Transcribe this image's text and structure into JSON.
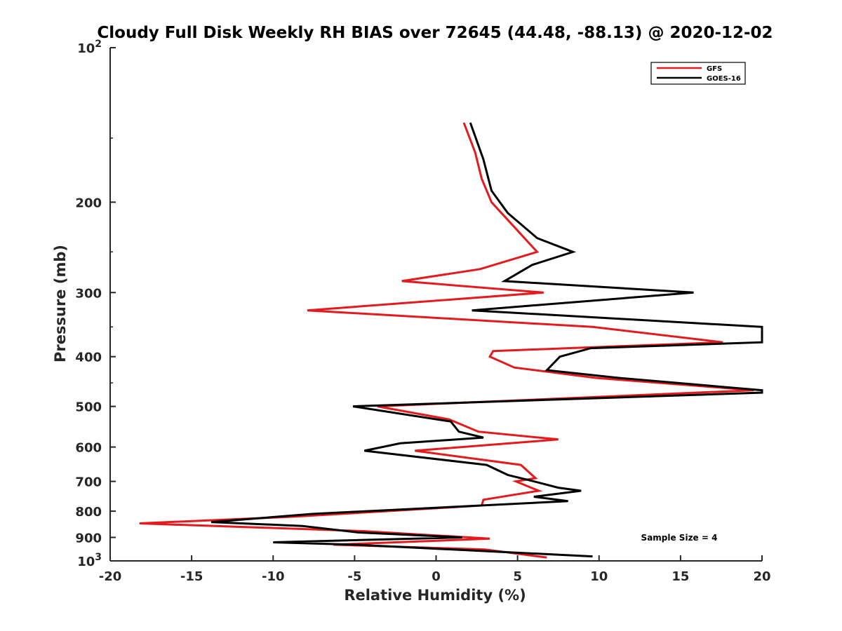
{
  "chart_data": {
    "type": "line",
    "title": "Cloudy Full Disk Weekly RH BIAS over 72645 (44.48, -88.13) @ 2020-12-02",
    "xlabel": "Relative Humidity (%)",
    "ylabel": "Pressure (mb)",
    "xlim": [
      -20,
      20
    ],
    "ylim": [
      100,
      1000
    ],
    "y_scale": "log",
    "y_reversed": true,
    "grid": false,
    "legend_position": "top-right",
    "x_ticks": [
      "-20",
      "-15",
      "-10",
      "-5",
      "0",
      "5",
      "10",
      "15",
      "20"
    ],
    "y_ticks": [
      {
        "value": 100,
        "base": "10",
        "exp": "2"
      },
      {
        "value": 200,
        "label": "200"
      },
      {
        "value": 300,
        "label": "300"
      },
      {
        "value": 400,
        "label": "400"
      },
      {
        "value": 500,
        "label": "500"
      },
      {
        "value": 600,
        "label": "600"
      },
      {
        "value": 700,
        "label": "700"
      },
      {
        "value": 800,
        "label": "800"
      },
      {
        "value": 900,
        "label": "900"
      },
      {
        "value": 1000,
        "base": "10",
        "exp": "3"
      }
    ],
    "annotation": "Sample Size = 4",
    "series": [
      {
        "name": "GFS",
        "color": "#e41a1c",
        "points": [
          [
            1.7,
            140
          ],
          [
            2.4,
            160
          ],
          [
            2.8,
            180
          ],
          [
            3.4,
            200
          ],
          [
            4.6,
            220
          ],
          [
            6.2,
            250
          ],
          [
            2.7,
            270
          ],
          [
            -2.1,
            285
          ],
          [
            6.6,
            300
          ],
          [
            -7.9,
            325
          ],
          [
            9.6,
            350
          ],
          [
            17.6,
            375
          ],
          [
            3.5,
            390
          ],
          [
            3.3,
            400
          ],
          [
            4.8,
            420
          ],
          [
            9.8,
            440
          ],
          [
            19.5,
            465
          ],
          [
            -3.6,
            500
          ],
          [
            0.8,
            530
          ],
          [
            2.6,
            560
          ],
          [
            7.5,
            580
          ],
          [
            -1.3,
            610
          ],
          [
            5.2,
            650
          ],
          [
            6.1,
            690
          ],
          [
            4.9,
            700
          ],
          [
            5.6,
            715
          ],
          [
            6.3,
            730
          ],
          [
            2.9,
            760
          ],
          [
            2.8,
            780
          ],
          [
            -8.7,
            820
          ],
          [
            -18.2,
            845
          ],
          [
            -4.5,
            875
          ],
          [
            3.3,
            905
          ],
          [
            -6.3,
            930
          ],
          [
            3.0,
            950
          ],
          [
            6.8,
            985
          ]
        ]
      },
      {
        "name": "GOES-16",
        "color": "#000000",
        "points": [
          [
            2.1,
            140
          ],
          [
            2.9,
            165
          ],
          [
            3.4,
            190
          ],
          [
            4.4,
            210
          ],
          [
            6.2,
            235
          ],
          [
            8.4,
            250
          ],
          [
            5.9,
            265
          ],
          [
            4.2,
            285
          ],
          [
            15.8,
            300
          ],
          [
            2.2,
            325
          ],
          [
            20.0,
            350
          ],
          [
            20.0,
            375
          ],
          [
            9.5,
            385
          ],
          [
            7.6,
            400
          ],
          [
            6.8,
            425
          ],
          [
            11.2,
            440
          ],
          [
            20.0,
            465
          ],
          [
            20.0,
            470
          ],
          [
            -5.1,
            500
          ],
          [
            0.9,
            535
          ],
          [
            1.4,
            560
          ],
          [
            2.9,
            575
          ],
          [
            -2.2,
            590
          ],
          [
            -4.4,
            610
          ],
          [
            3.1,
            650
          ],
          [
            4.4,
            680
          ],
          [
            6.0,
            700
          ],
          [
            7.5,
            720
          ],
          [
            8.9,
            730
          ],
          [
            6.0,
            750
          ],
          [
            8.1,
            765
          ],
          [
            -7.6,
            810
          ],
          [
            -13.8,
            840
          ],
          [
            -8.2,
            855
          ],
          [
            -4.8,
            880
          ],
          [
            1.6,
            900
          ],
          [
            -10.0,
            920
          ],
          [
            -5.0,
            930
          ],
          [
            9.6,
            980
          ]
        ]
      }
    ]
  }
}
